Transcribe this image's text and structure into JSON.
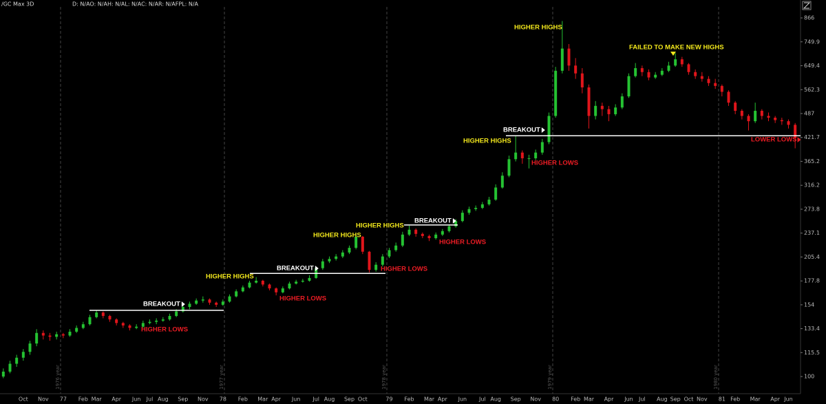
{
  "chart_data": {
    "type": "candlestick",
    "title": "/GC Max 3D",
    "subtitle": "D: N/AO: N/AH: N/AL: N/AC: N/AR: N/AFPL: N/A",
    "up_color": "#25c232",
    "down_color": "#e0151b",
    "log_scale": true,
    "ylim": [
      90.2,
      925.4
    ],
    "yticks": [
      866,
      749.9,
      649.4,
      562.3,
      487,
      421.7,
      365.2,
      316.2,
      273.8,
      237.1,
      205.4,
      177.8,
      154,
      133.4,
      115.5,
      100
    ],
    "categories": [
      null,
      null,
      null,
      "Oct",
      null,
      null,
      "Nov",
      null,
      null,
      "77",
      null,
      null,
      "Feb",
      null,
      "Mar",
      null,
      null,
      "Apr",
      null,
      null,
      "Jun",
      null,
      "Jul",
      null,
      "Aug",
      null,
      null,
      "Sep",
      null,
      null,
      "Nov",
      null,
      null,
      "78",
      null,
      null,
      "Feb",
      null,
      null,
      "Mar",
      null,
      "Apr",
      null,
      null,
      "Jun",
      null,
      null,
      "Jul",
      null,
      "Aug",
      null,
      null,
      "Sep",
      null,
      "Oct",
      null,
      null,
      null,
      "79",
      null,
      null,
      "Feb",
      null,
      null,
      "Mar",
      null,
      "Apr",
      null,
      null,
      "Jun",
      null,
      null,
      "Jul",
      null,
      "Aug",
      null,
      null,
      "Sep",
      null,
      null,
      "Nov",
      null,
      null,
      "80",
      null,
      null,
      "Feb",
      null,
      "Mar",
      null,
      null,
      "Apr",
      null,
      null,
      "Jun",
      null,
      "Jul",
      null,
      null,
      "Aug",
      null,
      "Sep",
      null,
      "Oct",
      null,
      "Nov",
      null,
      null,
      "81",
      null,
      "Feb",
      null,
      null,
      "Mar",
      null,
      null,
      "Apr",
      null,
      "Jun",
      null
    ],
    "candles": [
      [
        100,
        105,
        99,
        103
      ],
      [
        103,
        110,
        102,
        108
      ],
      [
        108,
        114,
        106,
        112
      ],
      [
        112,
        118,
        110,
        116
      ],
      [
        116,
        124,
        114,
        122
      ],
      [
        122,
        133,
        120,
        130
      ],
      [
        130,
        132,
        125,
        128
      ],
      [
        128,
        130,
        124,
        127
      ],
      [
        127,
        131,
        125,
        129
      ],
      [
        129,
        130,
        126,
        128
      ],
      [
        128,
        133,
        127,
        131
      ],
      [
        131,
        136,
        130,
        134
      ],
      [
        134,
        139,
        133,
        137
      ],
      [
        137,
        145,
        136,
        143
      ],
      [
        143,
        149,
        142,
        147
      ],
      [
        147,
        148,
        142,
        144
      ],
      [
        144,
        145,
        139,
        141
      ],
      [
        141,
        142,
        136,
        138
      ],
      [
        138,
        139,
        134,
        136
      ],
      [
        136,
        137,
        132,
        134
      ],
      [
        134,
        137,
        133,
        135
      ],
      [
        135,
        140,
        134,
        138
      ],
      [
        138,
        141,
        137,
        139
      ],
      [
        139,
        142,
        137,
        140
      ],
      [
        140,
        143,
        139,
        141
      ],
      [
        141,
        146,
        140,
        144
      ],
      [
        144,
        150,
        143,
        148
      ],
      [
        148,
        154,
        147,
        152
      ],
      [
        152,
        157,
        150,
        155
      ],
      [
        155,
        160,
        154,
        158
      ],
      [
        158,
        162,
        156,
        159
      ],
      [
        159,
        160,
        154,
        156
      ],
      [
        156,
        157,
        152,
        154
      ],
      [
        154,
        159,
        153,
        157
      ],
      [
        157,
        164,
        156,
        162
      ],
      [
        162,
        169,
        161,
        167
      ],
      [
        167,
        173,
        166,
        171
      ],
      [
        171,
        178,
        170,
        176
      ],
      [
        176,
        182,
        175,
        178
      ],
      [
        178,
        179,
        172,
        174
      ],
      [
        174,
        175,
        168,
        170
      ],
      [
        170,
        171,
        163,
        166
      ],
      [
        166,
        172,
        165,
        170
      ],
      [
        170,
        177,
        169,
        175
      ],
      [
        175,
        179,
        174,
        177
      ],
      [
        177,
        180,
        176,
        178
      ],
      [
        178,
        184,
        177,
        181
      ],
      [
        181,
        194,
        180,
        192
      ],
      [
        192,
        203,
        190,
        200
      ],
      [
        200,
        206,
        198,
        203
      ],
      [
        203,
        209,
        201,
        206
      ],
      [
        206,
        214,
        204,
        211
      ],
      [
        211,
        220,
        209,
        217
      ],
      [
        217,
        237,
        215,
        232
      ],
      [
        232,
        233,
        209,
        212
      ],
      [
        212,
        213,
        187,
        190
      ],
      [
        190,
        199,
        188,
        196
      ],
      [
        196,
        209,
        194,
        206
      ],
      [
        206,
        217,
        204,
        214
      ],
      [
        214,
        224,
        212,
        220
      ],
      [
        220,
        239,
        218,
        235
      ],
      [
        235,
        248,
        233,
        242
      ],
      [
        242,
        244,
        232,
        236
      ],
      [
        236,
        238,
        230,
        233
      ],
      [
        233,
        235,
        226,
        230
      ],
      [
        230,
        238,
        228,
        235
      ],
      [
        235,
        243,
        233,
        240
      ],
      [
        240,
        250,
        238,
        247
      ],
      [
        247,
        258,
        245,
        255
      ],
      [
        255,
        272,
        253,
        268
      ],
      [
        268,
        278,
        265,
        274
      ],
      [
        274,
        280,
        271,
        276
      ],
      [
        276,
        286,
        274,
        282
      ],
      [
        282,
        295,
        280,
        290
      ],
      [
        290,
        318,
        288,
        312
      ],
      [
        312,
        342,
        310,
        335
      ],
      [
        335,
        378,
        332,
        370
      ],
      [
        370,
        425,
        365,
        385
      ],
      [
        385,
        390,
        360,
        372
      ],
      [
        372,
        380,
        350,
        372
      ],
      [
        372,
        392,
        368,
        385
      ],
      [
        385,
        418,
        380,
        410
      ],
      [
        410,
        490,
        405,
        480
      ],
      [
        480,
        645,
        475,
        630
      ],
      [
        630,
        850,
        620,
        720
      ],
      [
        720,
        740,
        630,
        650
      ],
      [
        650,
        680,
        600,
        620
      ],
      [
        620,
        640,
        550,
        570
      ],
      [
        570,
        580,
        445,
        480
      ],
      [
        480,
        525,
        470,
        510
      ],
      [
        510,
        520,
        480,
        500
      ],
      [
        500,
        510,
        465,
        485
      ],
      [
        485,
        515,
        480,
        505
      ],
      [
        505,
        550,
        500,
        540
      ],
      [
        540,
        620,
        535,
        610
      ],
      [
        610,
        660,
        605,
        640
      ],
      [
        640,
        650,
        610,
        625
      ],
      [
        625,
        635,
        595,
        605
      ],
      [
        605,
        625,
        600,
        615
      ],
      [
        615,
        640,
        610,
        630
      ],
      [
        630,
        665,
        625,
        650
      ],
      [
        650,
        700,
        645,
        675
      ],
      [
        675,
        685,
        645,
        655
      ],
      [
        655,
        660,
        615,
        625
      ],
      [
        625,
        635,
        600,
        610
      ],
      [
        610,
        625,
        590,
        600
      ],
      [
        600,
        610,
        575,
        585
      ],
      [
        585,
        600,
        565,
        575
      ],
      [
        575,
        580,
        540,
        555
      ],
      [
        555,
        560,
        510,
        520
      ],
      [
        520,
        525,
        485,
        495
      ],
      [
        495,
        500,
        470,
        480
      ],
      [
        480,
        485,
        440,
        465
      ],
      [
        465,
        520,
        460,
        495
      ],
      [
        495,
        500,
        470,
        480
      ],
      [
        480,
        490,
        465,
        475
      ],
      [
        475,
        480,
        460,
        468
      ],
      [
        468,
        475,
        455,
        465
      ],
      [
        465,
        470,
        445,
        455
      ],
      [
        455,
        460,
        395,
        420
      ]
    ],
    "levels": [
      149,
      186,
      249,
      426
    ],
    "year_markers": [
      "1976 year",
      "1977 year",
      "1978 year",
      "1979 year",
      "1980 year"
    ],
    "annotations": [
      {
        "text": "HIGHER HIGHS",
        "color": "#f2e71c"
      },
      {
        "text": "FAILED TO MAKE NEW HIGHS",
        "color": "#f2e71c"
      },
      {
        "text": "BREAKOUT",
        "color": "#ffffff"
      },
      {
        "text": "HIGHER HIGHS",
        "color": "#f2e71c"
      },
      {
        "text": "HIGHER LOWS",
        "color": "#ec1c24"
      },
      {
        "text": "LOWER LOWS",
        "color": "#ec1c24"
      },
      {
        "text": "HIGHER HIGHS",
        "color": "#f2e71c"
      },
      {
        "text": "BREAKOUT",
        "color": "#ffffff"
      },
      {
        "text": "HIGHER LOWS",
        "color": "#ec1c24"
      },
      {
        "text": "HIGHER HIGHS",
        "color": "#f2e71c"
      },
      {
        "text": "BREAKOUT",
        "color": "#ffffff"
      },
      {
        "text": "HIGHER LOWS",
        "color": "#ec1c24"
      },
      {
        "text": "HIGHER HIGHS",
        "color": "#f2e71c"
      },
      {
        "text": "HIGHER LOWS",
        "color": "#ec1c24"
      },
      {
        "text": "BREAKOUT",
        "color": "#ffffff"
      },
      {
        "text": "HIGHER LOWS",
        "color": "#ec1c24"
      }
    ]
  }
}
